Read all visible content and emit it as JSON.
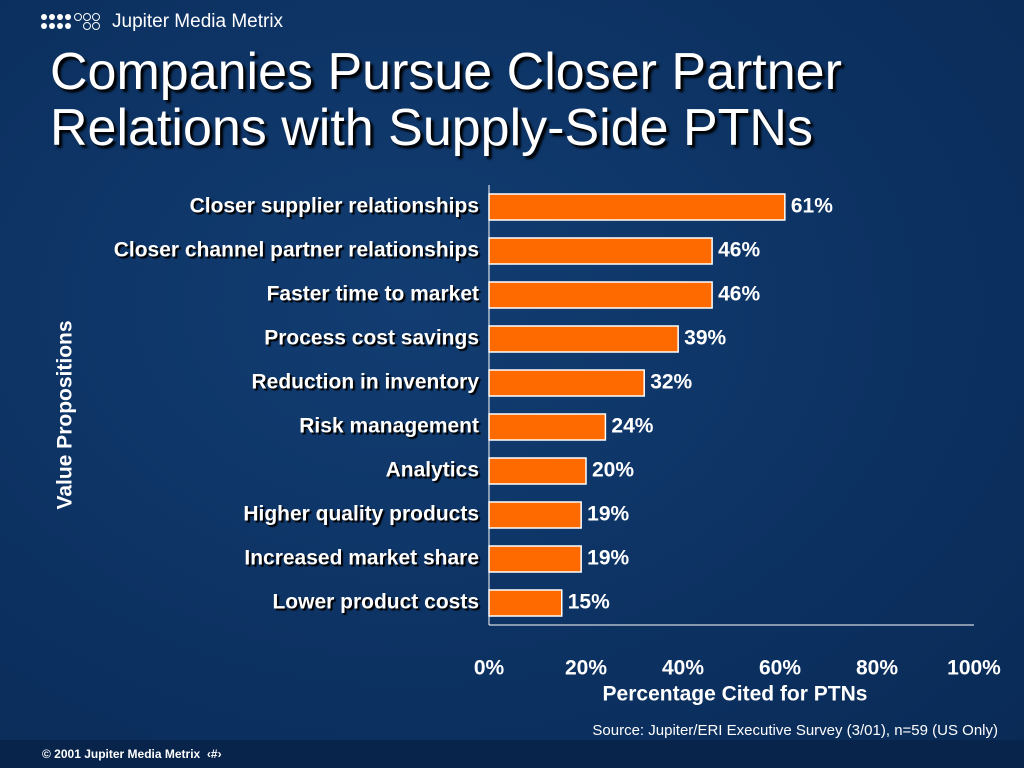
{
  "brand": "Jupiter Media Metrix",
  "footer": "© 2001 Jupiter Media Metrix  ‹#›",
  "chart_data": {
    "type": "hbar",
    "title": "Companies Pursue Closer Partner Relations with Supply-Side PTNs",
    "ylabel": "Value Propositions",
    "xlabel": "Percentage Cited for PTNs",
    "source": "Source: Jupiter/ERI Executive Survey (3/01), n=59 (US Only)",
    "categories": [
      "Closer supplier relationships",
      "Closer channel partner relationships",
      "Faster time to market",
      "Process cost savings",
      "Reduction in inventory",
      "Risk management",
      "Analytics",
      "Higher quality products",
      "Increased market share",
      "Lower product costs"
    ],
    "values": [
      61,
      46,
      46,
      39,
      32,
      24,
      20,
      19,
      19,
      15
    ],
    "value_labels": [
      "61%",
      "46%",
      "46%",
      "39%",
      "32%",
      "24%",
      "20%",
      "19%",
      "19%",
      "15%"
    ],
    "color": "#ff6a00",
    "xlim": [
      0,
      100
    ],
    "xticks": [
      {
        "value": 0,
        "label": "0%"
      },
      {
        "value": 20,
        "label": "20%"
      },
      {
        "value": 40,
        "label": "40%"
      },
      {
        "value": 60,
        "label": "60%"
      },
      {
        "value": 80,
        "label": "80%"
      },
      {
        "value": 100,
        "label": "100%"
      }
    ]
  }
}
